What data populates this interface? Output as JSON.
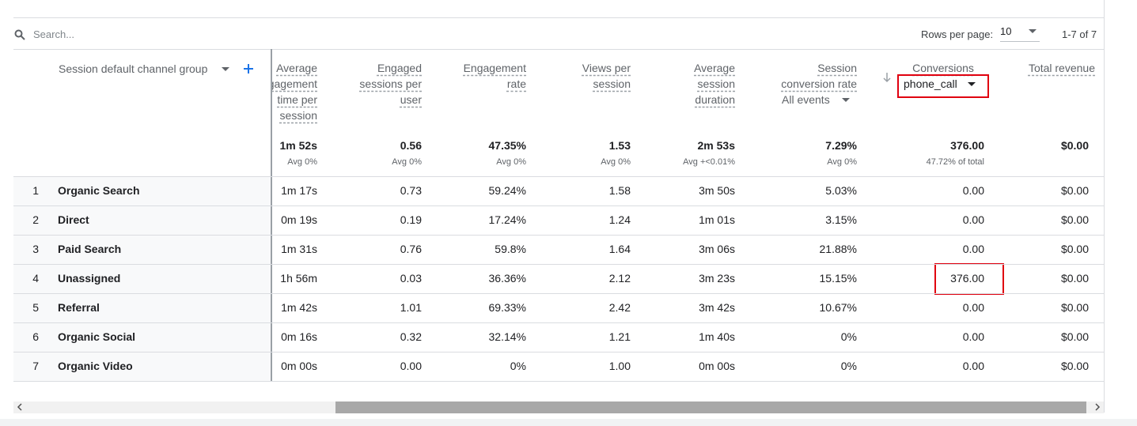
{
  "toolbar": {
    "search_placeholder": "Search...",
    "rows_per_page_label": "Rows per page:",
    "rows_per_page": "10",
    "pagination": "1-7 of 7"
  },
  "table": {
    "dimension_header": "Session default channel group",
    "columns": [
      {
        "title": "Average engagement time per session",
        "total": "1m 52s",
        "note": "Avg 0%"
      },
      {
        "title": "Engaged sessions per user",
        "total": "0.56",
        "note": "Avg 0%"
      },
      {
        "title": "Engagement rate",
        "total": "47.35%",
        "note": "Avg 0%"
      },
      {
        "title": "Views per session",
        "total": "1.53",
        "note": "Avg 0%"
      },
      {
        "title": "Average session duration",
        "total": "2m 53s",
        "note": "Avg +<0.01%"
      },
      {
        "title": "Session conversion rate",
        "filter": "All events",
        "total": "7.29%",
        "note": "Avg 0%"
      },
      {
        "title": "Conversions",
        "filter": "phone_call",
        "total": "376.00",
        "note": "47.72% of total"
      },
      {
        "title": "Total revenue",
        "total": "$0.00"
      }
    ],
    "rows": [
      [
        "1",
        "Organic Search",
        "1m 17s",
        "0.73",
        "59.24%",
        "1.58",
        "3m 50s",
        "5.03%",
        "0.00",
        "$0.00"
      ],
      [
        "2",
        "Direct",
        "0m 19s",
        "0.19",
        "17.24%",
        "1.24",
        "1m 01s",
        "3.15%",
        "0.00",
        "$0.00"
      ],
      [
        "3",
        "Paid Search",
        "1m 31s",
        "0.76",
        "59.8%",
        "1.64",
        "3m 06s",
        "21.88%",
        "0.00",
        "$0.00"
      ],
      [
        "4",
        "Unassigned",
        "1h 56m",
        "0.03",
        "36.36%",
        "2.12",
        "3m 23s",
        "15.15%",
        "376.00",
        "$0.00"
      ],
      [
        "5",
        "Referral",
        "1m 42s",
        "1.01",
        "69.33%",
        "2.42",
        "3m 42s",
        "10.67%",
        "0.00",
        "$0.00"
      ],
      [
        "6",
        "Organic Social",
        "0m 16s",
        "0.32",
        "32.14%",
        "1.21",
        "1m 40s",
        "0%",
        "0.00",
        "$0.00"
      ],
      [
        "7",
        "Organic Video",
        "0m 00s",
        "0.00",
        "0%",
        "1.00",
        "0m 00s",
        "0%",
        "0.00",
        "$0.00"
      ]
    ]
  }
}
